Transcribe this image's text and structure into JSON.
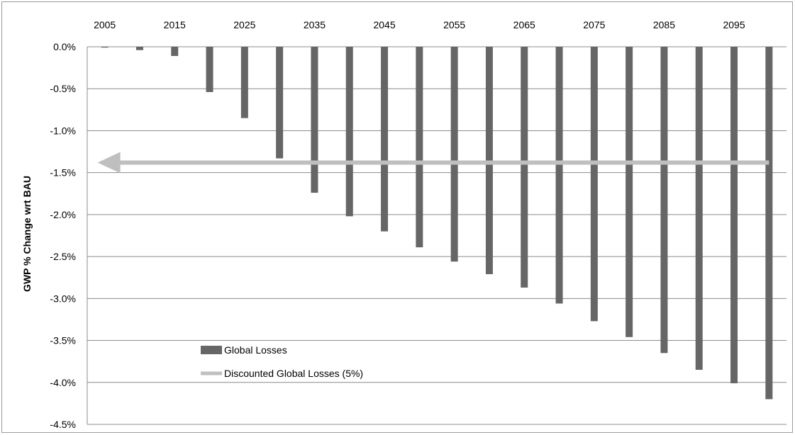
{
  "chart_data": {
    "type": "bar",
    "title": "",
    "xlabel": "",
    "ylabel": "GWP % Change wrt BAU",
    "x_tick_labels": [
      "2005",
      "2015",
      "2025",
      "2035",
      "2045",
      "2055",
      "2065",
      "2075",
      "2085",
      "2095"
    ],
    "categories": [
      2005,
      2010,
      2015,
      2020,
      2025,
      2030,
      2035,
      2040,
      2045,
      2050,
      2055,
      2060,
      2065,
      2070,
      2075,
      2080,
      2085,
      2090,
      2095,
      2100
    ],
    "series": [
      {
        "name": "Global Losses",
        "type": "bar",
        "color": "#666666",
        "values": [
          -0.01,
          -0.04,
          -0.11,
          -0.54,
          -0.85,
          -1.33,
          -1.74,
          -2.02,
          -2.2,
          -2.39,
          -2.56,
          -2.71,
          -2.87,
          -3.06,
          -3.27,
          -3.46,
          -3.65,
          -3.85,
          -4.01,
          -4.2
        ]
      },
      {
        "name": "Discounted Global Losses (5%)",
        "type": "arrow-line",
        "color": "#bfbfbf",
        "value": -1.38,
        "x_from": 2100,
        "x_to": 2005
      }
    ],
    "ylim": [
      -4.5,
      0.0
    ],
    "yticks": [
      0.0,
      -0.5,
      -1.0,
      -1.5,
      -2.0,
      -2.5,
      -3.0,
      -3.5,
      -4.0,
      -4.5
    ],
    "y_tick_labels": [
      "0.0%",
      "-0.5%",
      "-1.0%",
      "-1.5%",
      "-2.0%",
      "-2.5%",
      "-3.0%",
      "-3.5%",
      "-4.0%",
      "-4.5%"
    ],
    "grid": true,
    "x_axis_position": "top",
    "legend": {
      "position": "bottom-left"
    }
  }
}
